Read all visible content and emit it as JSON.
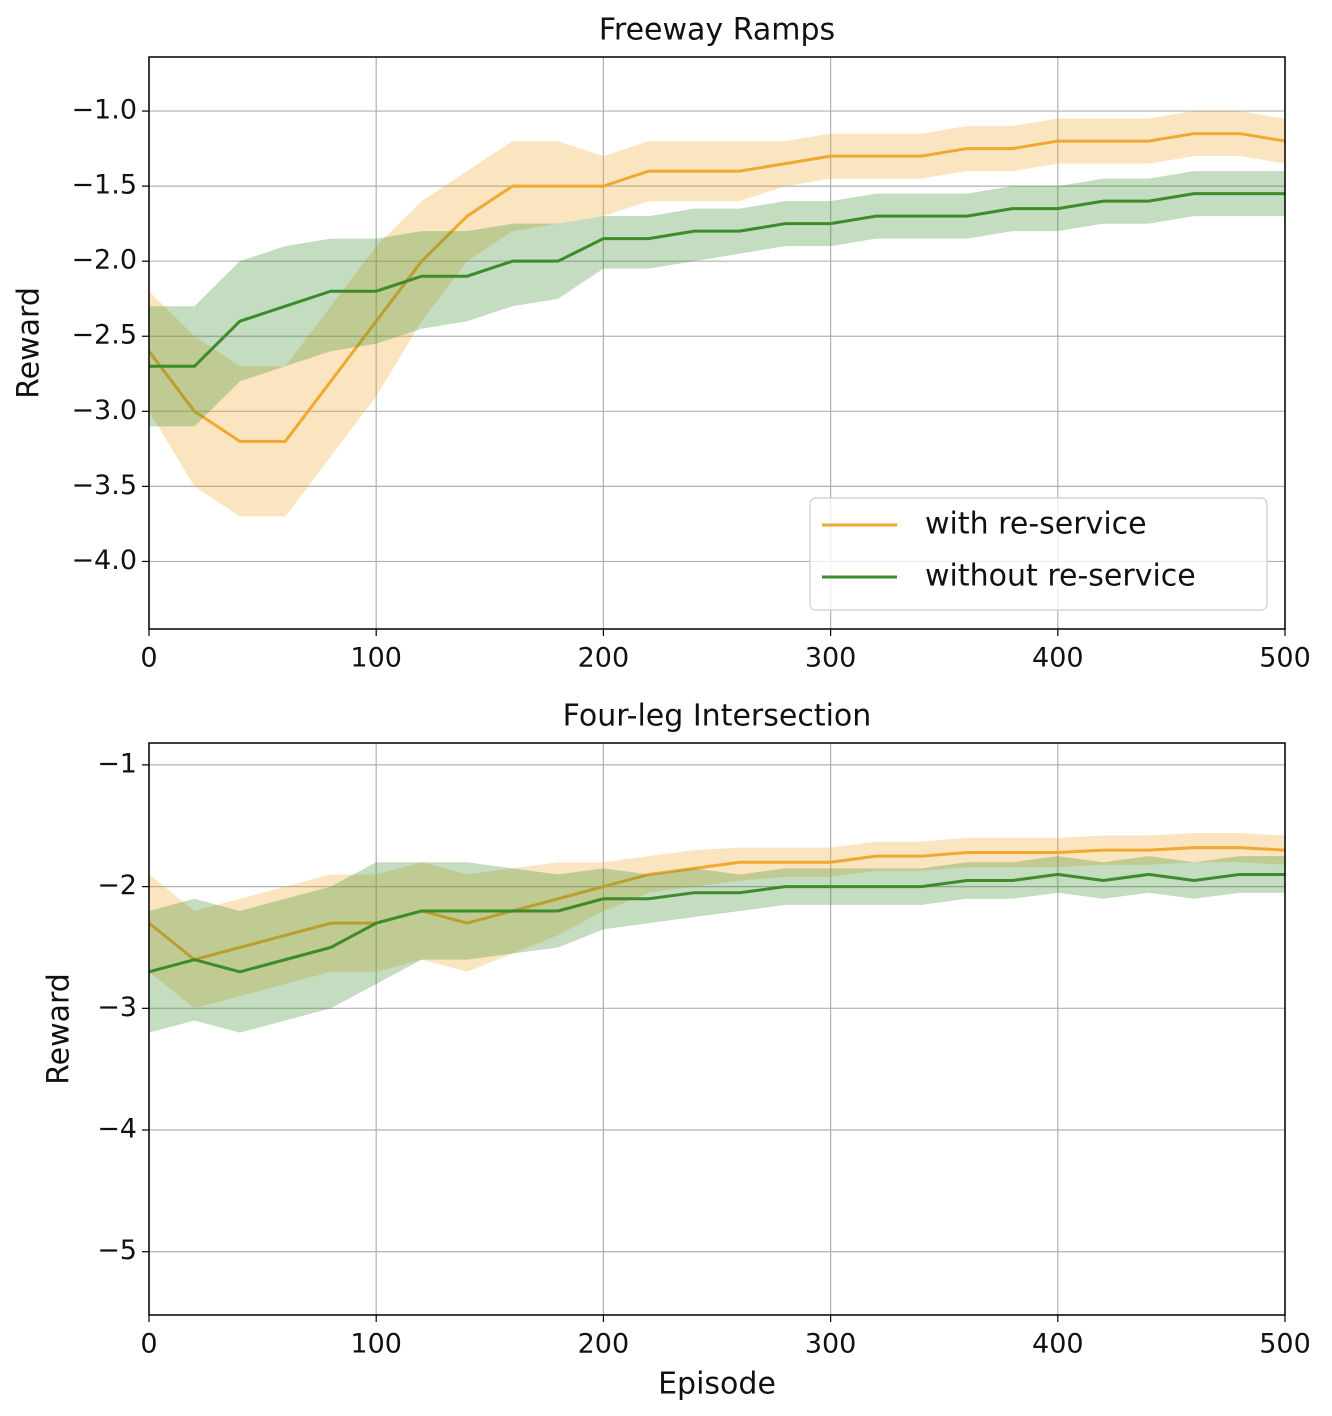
{
  "chart_data": [
    {
      "type": "line",
      "title": "Freeway Ramps",
      "ylabel": "Reward",
      "x": [
        0,
        20,
        40,
        60,
        80,
        100,
        120,
        140,
        160,
        180,
        200,
        220,
        240,
        260,
        280,
        300,
        320,
        340,
        360,
        380,
        400,
        420,
        440,
        460,
        480,
        500
      ],
      "series": [
        {
          "name": "with re-service",
          "color": "#f0a830",
          "values": [
            -2.6,
            -3.0,
            -3.2,
            -3.2,
            -2.8,
            -2.4,
            -2.0,
            -1.7,
            -1.5,
            -1.5,
            -1.5,
            -1.4,
            -1.4,
            -1.4,
            -1.35,
            -1.3,
            -1.3,
            -1.3,
            -1.25,
            -1.25,
            -1.2,
            -1.2,
            -1.2,
            -1.15,
            -1.15,
            -1.2
          ],
          "lower": [
            -3.0,
            -3.5,
            -3.7,
            -3.7,
            -3.3,
            -2.9,
            -2.4,
            -2.0,
            -1.8,
            -1.75,
            -1.7,
            -1.6,
            -1.6,
            -1.6,
            -1.5,
            -1.45,
            -1.45,
            -1.45,
            -1.4,
            -1.4,
            -1.35,
            -1.35,
            -1.35,
            -1.3,
            -1.3,
            -1.35
          ],
          "upper": [
            -2.2,
            -2.5,
            -2.7,
            -2.7,
            -2.3,
            -1.9,
            -1.6,
            -1.4,
            -1.2,
            -1.2,
            -1.3,
            -1.2,
            -1.2,
            -1.2,
            -1.2,
            -1.15,
            -1.15,
            -1.15,
            -1.1,
            -1.1,
            -1.05,
            -1.05,
            -1.05,
            -1.0,
            -1.0,
            -1.05
          ]
        },
        {
          "name": "without re-service",
          "color": "#3d8b2a",
          "values": [
            -2.7,
            -2.7,
            -2.4,
            -2.3,
            -2.2,
            -2.2,
            -2.1,
            -2.1,
            -2.0,
            -2.0,
            -1.85,
            -1.85,
            -1.8,
            -1.8,
            -1.75,
            -1.75,
            -1.7,
            -1.7,
            -1.7,
            -1.65,
            -1.65,
            -1.6,
            -1.6,
            -1.55,
            -1.55,
            -1.55
          ],
          "lower": [
            -3.1,
            -3.1,
            -2.8,
            -2.7,
            -2.6,
            -2.55,
            -2.45,
            -2.4,
            -2.3,
            -2.25,
            -2.05,
            -2.05,
            -2.0,
            -1.95,
            -1.9,
            -1.9,
            -1.85,
            -1.85,
            -1.85,
            -1.8,
            -1.8,
            -1.75,
            -1.75,
            -1.7,
            -1.7,
            -1.7
          ],
          "upper": [
            -2.3,
            -2.3,
            -2.0,
            -1.9,
            -1.85,
            -1.85,
            -1.8,
            -1.8,
            -1.75,
            -1.75,
            -1.7,
            -1.7,
            -1.65,
            -1.65,
            -1.6,
            -1.6,
            -1.55,
            -1.55,
            -1.55,
            -1.5,
            -1.5,
            -1.45,
            -1.45,
            -1.4,
            -1.4,
            -1.4
          ]
        }
      ],
      "xlim": [
        0,
        500
      ],
      "xticks": [
        0,
        100,
        200,
        300,
        400,
        500
      ],
      "ylim": [
        -4.45,
        -0.64
      ],
      "yticks": [
        {
          "value": -4.0,
          "label": "−4.0"
        },
        {
          "value": -3.5,
          "label": "−3.5"
        },
        {
          "value": -3.0,
          "label": "−3.0"
        },
        {
          "value": -2.5,
          "label": "−2.5"
        },
        {
          "value": -2.0,
          "label": "−2.0"
        },
        {
          "value": -1.5,
          "label": "−1.5"
        },
        {
          "value": -1.0,
          "label": "−1.0"
        }
      ],
      "grid": true,
      "legend": "lower right"
    },
    {
      "type": "line",
      "title": "Four-leg Intersection",
      "ylabel": "Reward",
      "xlabel": "Episode",
      "x": [
        0,
        20,
        40,
        60,
        80,
        100,
        120,
        140,
        160,
        180,
        200,
        220,
        240,
        260,
        280,
        300,
        320,
        340,
        360,
        380,
        400,
        420,
        440,
        460,
        480,
        500
      ],
      "series": [
        {
          "name": "with re-service",
          "color": "#f0a830",
          "values": [
            -2.3,
            -2.6,
            -2.5,
            -2.4,
            -2.3,
            -2.3,
            -2.2,
            -2.3,
            -2.2,
            -2.1,
            -2.0,
            -1.9,
            -1.85,
            -1.8,
            -1.8,
            -1.8,
            -1.75,
            -1.75,
            -1.72,
            -1.72,
            -1.72,
            -1.7,
            -1.7,
            -1.68,
            -1.68,
            -1.7
          ],
          "lower": [
            -2.7,
            -3.0,
            -2.9,
            -2.8,
            -2.7,
            -2.7,
            -2.6,
            -2.7,
            -2.55,
            -2.4,
            -2.2,
            -2.05,
            -2.0,
            -1.95,
            -1.92,
            -1.92,
            -1.87,
            -1.87,
            -1.84,
            -1.84,
            -1.84,
            -1.82,
            -1.82,
            -1.8,
            -1.8,
            -1.82
          ],
          "upper": [
            -1.9,
            -2.2,
            -2.1,
            -2.0,
            -1.9,
            -1.9,
            -1.8,
            -1.9,
            -1.85,
            -1.8,
            -1.8,
            -1.75,
            -1.7,
            -1.68,
            -1.68,
            -1.68,
            -1.63,
            -1.63,
            -1.6,
            -1.6,
            -1.6,
            -1.58,
            -1.58,
            -1.56,
            -1.56,
            -1.58
          ]
        },
        {
          "name": "without re-service",
          "color": "#3d8b2a",
          "values": [
            -2.7,
            -2.6,
            -2.7,
            -2.6,
            -2.5,
            -2.3,
            -2.2,
            -2.2,
            -2.2,
            -2.2,
            -2.1,
            -2.1,
            -2.05,
            -2.05,
            -2.0,
            -2.0,
            -2.0,
            -2.0,
            -1.95,
            -1.95,
            -1.9,
            -1.95,
            -1.9,
            -1.95,
            -1.9,
            -1.9
          ],
          "lower": [
            -3.2,
            -3.1,
            -3.2,
            -3.1,
            -3.0,
            -2.8,
            -2.6,
            -2.6,
            -2.55,
            -2.5,
            -2.35,
            -2.3,
            -2.25,
            -2.2,
            -2.15,
            -2.15,
            -2.15,
            -2.15,
            -2.1,
            -2.1,
            -2.05,
            -2.1,
            -2.05,
            -2.1,
            -2.05,
            -2.05
          ],
          "upper": [
            -2.2,
            -2.1,
            -2.2,
            -2.1,
            -2.0,
            -1.8,
            -1.8,
            -1.8,
            -1.85,
            -1.9,
            -1.85,
            -1.9,
            -1.85,
            -1.9,
            -1.85,
            -1.85,
            -1.85,
            -1.85,
            -1.8,
            -1.8,
            -1.75,
            -1.8,
            -1.75,
            -1.8,
            -1.75,
            -1.75
          ]
        }
      ],
      "xlim": [
        0,
        500
      ],
      "xticks": [
        0,
        100,
        200,
        300,
        400,
        500
      ],
      "ylim": [
        -5.52,
        -0.82
      ],
      "yticks": [
        {
          "value": -5,
          "label": "−5"
        },
        {
          "value": -4,
          "label": "−4"
        },
        {
          "value": -3,
          "label": "−3"
        },
        {
          "value": -2,
          "label": "−2"
        },
        {
          "value": -1,
          "label": "−1"
        }
      ],
      "grid": true
    }
  ]
}
